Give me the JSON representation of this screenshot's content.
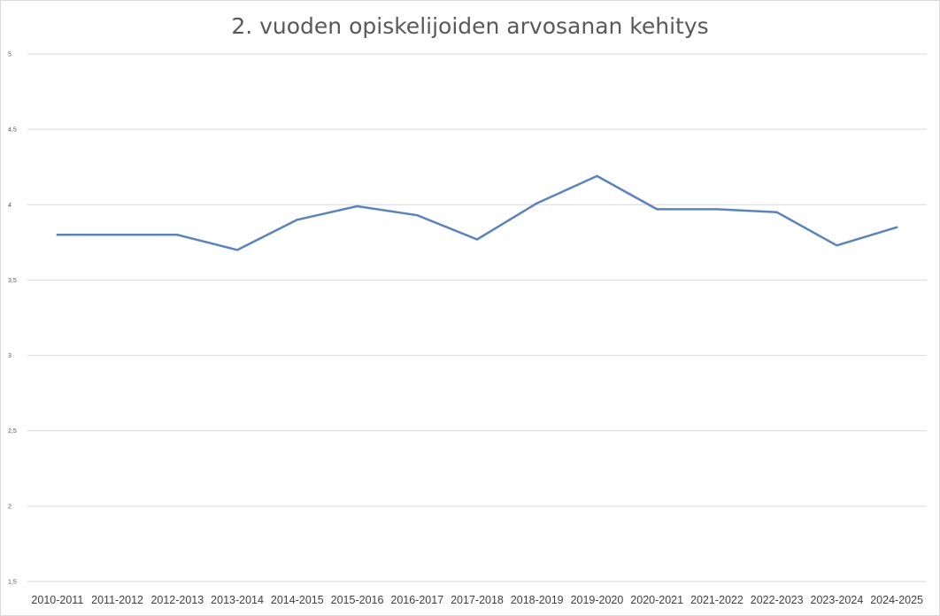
{
  "chart_data": {
    "type": "line",
    "title": "2. vuoden opiskelijoiden arvosanan kehitys",
    "xlabel": "",
    "ylabel": "",
    "categories": [
      "2010-2011",
      "2011-2012",
      "2012-2013",
      "2013-2014",
      "2014-2015",
      "2015-2016",
      "2016-2017",
      "2017-2018",
      "2018-2019",
      "2019-2020",
      "2020-2021",
      "2021-2022",
      "2022-2023",
      "2023-2024",
      "2024-2025"
    ],
    "series": [
      {
        "name": "",
        "color": "#5b84bd",
        "values": [
          3.8,
          3.8,
          3.8,
          3.7,
          3.9,
          3.99,
          3.93,
          3.77,
          4.01,
          4.19,
          3.97,
          3.97,
          3.95,
          3.73,
          3.85
        ]
      }
    ],
    "ylim": [
      1.5,
      5
    ],
    "yticks": [
      "1,5",
      "2",
      "2,5",
      "3",
      "3,5",
      "4",
      "4,5",
      "5"
    ],
    "ytick_values": [
      1.5,
      2,
      2.5,
      3,
      3.5,
      4,
      4.5,
      5
    ],
    "grid": true,
    "legend": "none"
  }
}
